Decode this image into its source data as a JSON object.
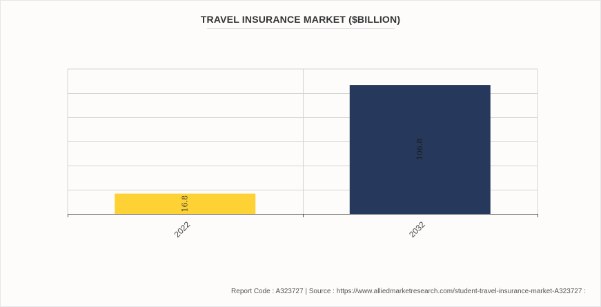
{
  "chart_data": {
    "type": "bar",
    "title": "TRAVEL INSURANCE MARKET ($BILLION)",
    "categories": [
      "2022",
      "2032"
    ],
    "values": [
      16.8,
      106.8
    ],
    "value_labels": [
      "16.8",
      "106.8"
    ],
    "colors": [
      "#fed235",
      "#26385b"
    ],
    "ylim": [
      0,
      120
    ],
    "grid": true,
    "xlabel": "",
    "ylabel": ""
  },
  "footer": {
    "text": "Report Code : A323727  |  Source : https://www.alliedmarketresearch.com/student-travel-insurance-market-A323727 :"
  }
}
